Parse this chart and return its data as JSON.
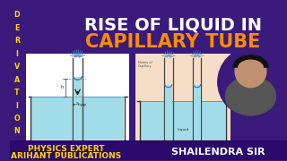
{
  "bg_color": "#3a1a7a",
  "title_line1": "RISE OF LIQUID IN",
  "title_line2": "CAPILLARY TUBE",
  "title_color1": "#ffffff",
  "title_color2": "#ff8c00",
  "deriv_color": "#ffd700",
  "bottom_left1": "PHYSICS EXPERT",
  "bottom_left2": "ARIHANT PUBLICATIONS",
  "bottom_right": "SHAILENDRA SIR",
  "bottom_color": "#ffd700",
  "bottom_bar_color": "#2a0a6a",
  "liquid_color": "#a0dde8",
  "tube_color": "#666666"
}
